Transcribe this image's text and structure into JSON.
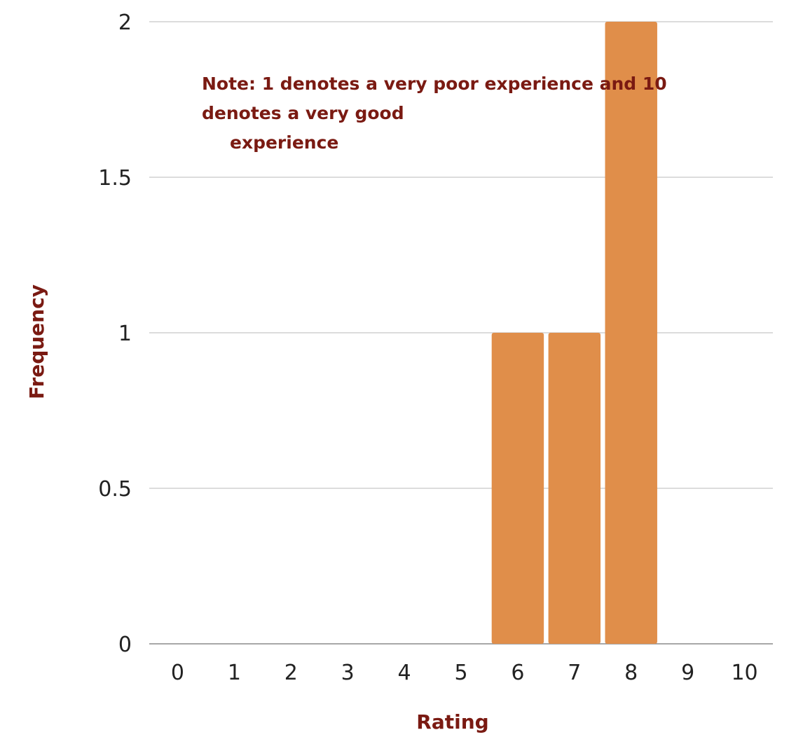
{
  "chart_data": {
    "type": "bar",
    "categories": [
      "0",
      "1",
      "2",
      "3",
      "4",
      "5",
      "6",
      "7",
      "8",
      "9",
      "10"
    ],
    "values": [
      0,
      0,
      0,
      0,
      0,
      0,
      1,
      1,
      2,
      0,
      0
    ],
    "title": "",
    "xlabel": "Rating",
    "ylabel": "Frequency",
    "ylim": [
      0,
      2
    ],
    "yticks": [
      "0",
      "0.5",
      "1",
      "1.5",
      "2"
    ],
    "grid": true,
    "legend": "none",
    "bar_color": "#E08E4A",
    "annotation": {
      "lines": [
        "Note: 1 denotes a very poor experience and 10",
        "denotes a very good",
        "experience"
      ]
    }
  }
}
